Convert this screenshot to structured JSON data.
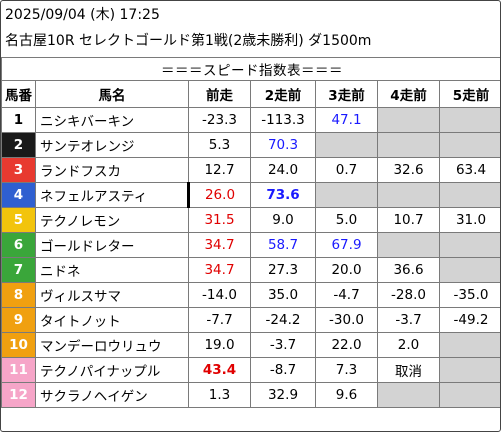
{
  "header": {
    "line1": "2025/09/04 (木) 17:25",
    "line2": "名古屋10R セレクトゴールド第1戦(2歳未勝利) ダ1500m"
  },
  "table": {
    "title": "＝＝＝スピード指数表＝＝＝",
    "columns": [
      "馬番",
      "馬名",
      "前走",
      "2走前",
      "3走前",
      "4走前",
      "5走前"
    ],
    "rows": [
      {
        "num": "1",
        "name": "ニシキバーキン",
        "bg": "#ffffff",
        "fg": "#000000",
        "vals": [
          "-23.3",
          "-113.3",
          "47.1",
          "",
          ""
        ]
      },
      {
        "num": "2",
        "name": "サンテオレンジ",
        "bg": "#1a1a1a",
        "fg": "#ffffff",
        "vals": [
          "5.3",
          "70.3",
          "",
          "",
          ""
        ]
      },
      {
        "num": "3",
        "name": "ランドフスカ",
        "bg": "#e83a30",
        "fg": "#ffffff",
        "vals": [
          "12.7",
          "24.0",
          "0.7",
          "32.6",
          "63.4"
        ]
      },
      {
        "num": "4",
        "name": "ネフェルアスティ",
        "bg": "#2f5fd0",
        "fg": "#ffffff",
        "vals": [
          "26.0",
          "73.6",
          "",
          "",
          ""
        ]
      },
      {
        "num": "5",
        "name": "テクノレモン",
        "bg": "#f2c40c",
        "fg": "#ffffff",
        "vals": [
          "31.5",
          "9.0",
          "5.0",
          "10.7",
          "31.0"
        ]
      },
      {
        "num": "6",
        "name": "ゴールドレター",
        "bg": "#3aa63a",
        "fg": "#ffffff",
        "vals": [
          "34.7",
          "58.7",
          "67.9",
          "",
          ""
        ]
      },
      {
        "num": "7",
        "name": "ニドネ",
        "bg": "#3aa63a",
        "fg": "#ffffff",
        "vals": [
          "34.7",
          "27.3",
          "20.0",
          "36.6",
          ""
        ]
      },
      {
        "num": "8",
        "name": "ヴィルスサマ",
        "bg": "#f0a010",
        "fg": "#ffffff",
        "vals": [
          "-14.0",
          "35.0",
          "-4.7",
          "-28.0",
          "-35.0"
        ]
      },
      {
        "num": "9",
        "name": "タイトノット",
        "bg": "#f0a010",
        "fg": "#ffffff",
        "vals": [
          "-7.7",
          "-24.2",
          "-30.0",
          "-3.7",
          "-49.2"
        ]
      },
      {
        "num": "10",
        "name": "マンデーロウリュウ",
        "bg": "#f0a010",
        "fg": "#ffffff",
        "vals": [
          "19.0",
          "-3.7",
          "22.0",
          "2.0",
          ""
        ]
      },
      {
        "num": "11",
        "name": "テクノパイナップル",
        "bg": "#f6a5c8",
        "fg": "#ffffff",
        "vals": [
          "43.4",
          "-8.7",
          "7.3",
          "取消",
          ""
        ]
      },
      {
        "num": "12",
        "name": "サクラノヘイゲン",
        "bg": "#f6a5c8",
        "fg": "#ffffff",
        "vals": [
          "1.3",
          "32.9",
          "9.6",
          "",
          ""
        ]
      }
    ]
  }
}
